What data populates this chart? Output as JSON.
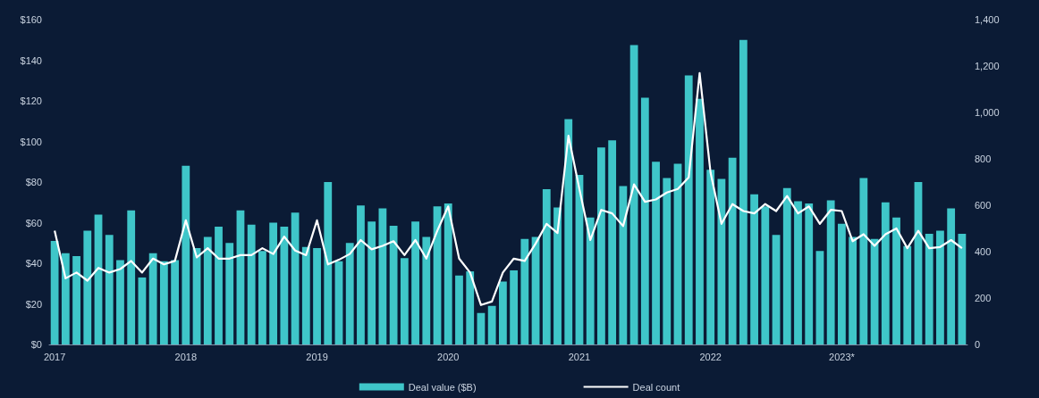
{
  "chart_data": {
    "type": "bar",
    "categories": [
      "2017",
      null,
      null,
      null,
      null,
      null,
      null,
      null,
      null,
      null,
      null,
      null,
      "2018",
      null,
      null,
      null,
      null,
      null,
      null,
      null,
      null,
      null,
      null,
      null,
      "2019",
      null,
      null,
      null,
      null,
      null,
      null,
      null,
      null,
      null,
      null,
      null,
      "2020",
      null,
      null,
      null,
      null,
      null,
      null,
      null,
      null,
      null,
      null,
      null,
      "2021",
      null,
      null,
      null,
      null,
      null,
      null,
      null,
      null,
      null,
      null,
      null,
      "2022",
      null,
      null,
      null,
      null,
      null,
      null,
      null,
      null,
      null,
      null,
      null,
      "2023*",
      null,
      null,
      null,
      null,
      null,
      null,
      null,
      null,
      null,
      null,
      null
    ],
    "series": [
      {
        "name": "Deal value ($B)",
        "color": "#3fc6c9",
        "values": [
          51,
          45,
          43.5,
          56,
          64,
          54,
          41.5,
          66,
          33,
          45,
          41,
          41.5,
          88,
          47.5,
          53,
          58,
          50,
          66,
          59,
          46,
          60,
          58,
          65,
          48,
          47.5,
          80,
          41,
          50,
          68.5,
          60.5,
          67,
          58.5,
          42.5,
          60.5,
          53,
          68,
          69.5,
          34,
          36,
          15.5,
          19,
          31,
          36.5,
          52,
          53,
          76.5,
          67.5,
          111,
          83.5,
          62.5,
          97,
          100.5,
          78,
          147.5,
          121.5,
          90,
          82,
          89,
          132.5,
          121,
          86,
          81.5,
          92,
          150,
          74,
          68,
          54,
          77,
          70.5,
          69.5,
          46,
          71,
          59.5,
          53,
          82,
          52,
          70,
          62.5,
          48.5,
          80,
          54.5,
          56,
          67,
          54.5
        ]
      },
      {
        "name": "Deal count",
        "type": "line",
        "axis": "y2",
        "color": "#ffffff",
        "values": [
          490,
          285,
          310,
          275,
          330,
          310,
          325,
          360,
          310,
          370,
          345,
          360,
          535,
          375,
          415,
          370,
          370,
          385,
          385,
          415,
          390,
          465,
          405,
          385,
          535,
          345,
          365,
          390,
          450,
          410,
          425,
          445,
          385,
          450,
          370,
          490,
          595,
          370,
          310,
          170,
          185,
          310,
          370,
          360,
          435,
          520,
          480,
          900,
          670,
          450,
          580,
          565,
          510,
          690,
          615,
          625,
          655,
          670,
          720,
          1170,
          740,
          520,
          605,
          575,
          565,
          605,
          575,
          640,
          565,
          595,
          520,
          580,
          575,
          445,
          475,
          425,
          475,
          500,
          415,
          490,
          415,
          420,
          450,
          415
        ]
      }
    ],
    "ylim": [
      0,
      160
    ],
    "yticks": [
      {
        "value": 0,
        "label": "$0"
      },
      {
        "value": 20,
        "label": "$20"
      },
      {
        "value": 40,
        "label": "$40"
      },
      {
        "value": 60,
        "label": "$60"
      },
      {
        "value": 80,
        "label": "$80"
      },
      {
        "value": 100,
        "label": "$100"
      },
      {
        "value": 120,
        "label": "$120"
      },
      {
        "value": 140,
        "label": "$140"
      },
      {
        "value": 160,
        "label": "$160"
      }
    ],
    "y2lim": [
      0,
      1400
    ],
    "y2ticks": [
      0,
      200,
      400,
      600,
      800,
      {
        "value": 1000,
        "label": "1,000"
      },
      {
        "value": 1200,
        "label": "1,200"
      },
      {
        "value": 1400,
        "label": "1,400"
      }
    ],
    "legend": "bottom",
    "marker": "none"
  }
}
